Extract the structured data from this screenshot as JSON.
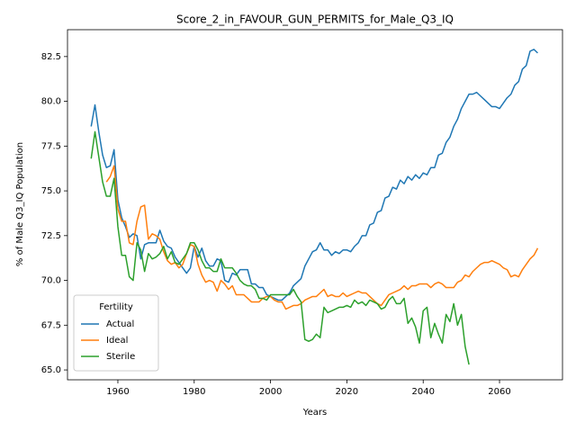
{
  "chart_data": {
    "type": "line",
    "title": "Score_2_in_FAVOUR_GUN_PERMITS_for_Male_Q3_IQ",
    "x_label": "Years",
    "y_label": "% of Male Q3_IQ Population",
    "legend_title": "Fertility",
    "legend": "lower left",
    "x": [
      1953,
      1954,
      1955,
      1956,
      1957,
      1958,
      1959,
      1960,
      1961,
      1962,
      1963,
      1964,
      1965,
      1966,
      1967,
      1968,
      1969,
      1970,
      1971,
      1972,
      1973,
      1974,
      1975,
      1976,
      1977,
      1978,
      1979,
      1980,
      1981,
      1982,
      1983,
      1984,
      1985,
      1986,
      1987,
      1988,
      1989,
      1990,
      1991,
      1992,
      1993,
      1994,
      1995,
      1996,
      1997,
      1998,
      1999,
      2000,
      2001,
      2002,
      2003,
      2004,
      2005,
      2006,
      2007,
      2008,
      2009,
      2010,
      2011,
      2012,
      2013,
      2014,
      2015,
      2016,
      2017,
      2018,
      2019,
      2020,
      2021,
      2022,
      2023,
      2024,
      2025,
      2026,
      2027,
      2028,
      2029,
      2030,
      2031,
      2032,
      2033,
      2034,
      2035,
      2036,
      2037,
      2038,
      2039,
      2040,
      2041,
      2042,
      2043,
      2044,
      2045,
      2046,
      2047,
      2048,
      2049,
      2050,
      2051,
      2052,
      2053,
      2054,
      2055,
      2056,
      2057,
      2058,
      2059,
      2060,
      2061,
      2062,
      2063,
      2064,
      2065,
      2066,
      2067,
      2068,
      2069,
      2070
    ],
    "series": [
      {
        "name": "Actual",
        "color": "#1f77b4",
        "values": [
          78.6,
          79.8,
          78.3,
          77.0,
          76.3,
          76.4,
          77.3,
          74.5,
          73.5,
          73.0,
          72.4,
          72.6,
          72.5,
          71.2,
          72.0,
          72.1,
          72.1,
          72.1,
          72.8,
          72.2,
          71.9,
          71.8,
          71.3,
          71.0,
          70.7,
          70.4,
          70.7,
          71.9,
          71.3,
          71.8,
          71.1,
          70.8,
          70.8,
          71.2,
          71.1,
          70.0,
          69.9,
          70.4,
          70.3,
          70.6,
          70.6,
          70.6,
          69.8,
          69.8,
          69.6,
          69.6,
          69.2,
          69.1,
          69.0,
          68.9,
          68.9,
          69.1,
          69.3,
          69.7,
          69.9,
          70.1,
          70.8,
          71.2,
          71.6,
          71.7,
          72.1,
          71.7,
          71.7,
          71.4,
          71.6,
          71.5,
          71.7,
          71.7,
          71.6,
          71.9,
          72.1,
          72.5,
          72.5,
          73.1,
          73.2,
          73.8,
          73.9,
          74.6,
          74.7,
          75.2,
          75.1,
          75.6,
          75.4,
          75.8,
          75.6,
          75.9,
          75.7,
          76.0,
          75.9,
          76.3,
          76.3,
          77.0,
          77.1,
          77.7,
          78.0,
          78.6,
          79.0,
          79.6,
          80.0,
          80.4,
          80.4,
          80.5,
          80.3,
          80.1,
          79.9,
          79.7,
          79.7,
          79.6,
          79.9,
          80.2,
          80.4,
          80.9,
          81.1,
          81.8,
          82.0,
          82.8,
          82.9,
          82.7
        ]
      },
      {
        "name": "Ideal",
        "color": "#ff7f0e",
        "values": [
          null,
          null,
          null,
          null,
          75.5,
          75.8,
          76.4,
          74.0,
          73.3,
          73.3,
          72.1,
          72.0,
          73.3,
          74.1,
          74.2,
          72.3,
          72.6,
          72.5,
          72.3,
          71.6,
          71.1,
          70.9,
          71.0,
          70.7,
          70.9,
          71.5,
          72.0,
          71.9,
          70.9,
          70.3,
          69.9,
          70.0,
          69.9,
          69.4,
          70.0,
          69.8,
          69.5,
          69.7,
          69.2,
          69.2,
          69.2,
          69.0,
          68.8,
          68.8,
          68.8,
          69.0,
          69.1,
          69.1,
          68.9,
          68.8,
          68.8,
          68.4,
          68.5,
          68.6,
          68.6,
          68.7,
          68.9,
          69.0,
          69.1,
          69.1,
          69.3,
          69.5,
          69.1,
          69.2,
          69.1,
          69.1,
          69.3,
          69.1,
          69.2,
          69.3,
          69.4,
          69.3,
          69.3,
          69.1,
          68.9,
          68.7,
          68.6,
          68.9,
          69.2,
          69.3,
          69.4,
          69.5,
          69.7,
          69.5,
          69.7,
          69.7,
          69.8,
          69.8,
          69.8,
          69.6,
          69.8,
          69.9,
          69.8,
          69.6,
          69.6,
          69.6,
          69.9,
          70.0,
          70.3,
          70.2,
          70.5,
          70.7,
          70.9,
          71.0,
          71.0,
          71.1,
          71.0,
          70.9,
          70.7,
          70.6,
          70.2,
          70.3,
          70.2,
          70.6,
          70.9,
          71.2,
          71.4,
          71.8
        ]
      },
      {
        "name": "Sterile",
        "color": "#2ca02c",
        "values": [
          76.8,
          78.3,
          76.9,
          75.5,
          74.7,
          74.7,
          75.7,
          73.0,
          71.4,
          71.4,
          70.2,
          70.0,
          72.1,
          71.7,
          70.5,
          71.5,
          71.2,
          71.3,
          71.5,
          71.9,
          71.2,
          71.6,
          71.0,
          70.9,
          71.2,
          71.5,
          72.1,
          72.1,
          71.7,
          71.1,
          70.7,
          70.7,
          70.5,
          70.5,
          71.2,
          70.7,
          70.7,
          70.7,
          70.4,
          70.0,
          69.8,
          69.7,
          69.7,
          69.5,
          69.0,
          69.0,
          68.9,
          69.2,
          69.2,
          69.2,
          69.2,
          69.2,
          69.2,
          69.5,
          69.1,
          68.8,
          66.7,
          66.6,
          66.7,
          67.0,
          66.8,
          68.5,
          68.2,
          68.3,
          68.4,
          68.5,
          68.5,
          68.6,
          68.5,
          68.9,
          68.7,
          68.8,
          68.6,
          68.9,
          68.8,
          68.7,
          68.4,
          68.5,
          68.9,
          69.1,
          68.7,
          68.7,
          69.0,
          67.6,
          67.9,
          67.4,
          66.5,
          68.3,
          68.5,
          66.8,
          67.6,
          67.0,
          66.5,
          68.1,
          67.7,
          68.7,
          67.5,
          68.1,
          66.3,
          65.3,
          null,
          null,
          null,
          null,
          null,
          null,
          null,
          null,
          null,
          null,
          null,
          null,
          null,
          null,
          null,
          null,
          null,
          null
        ]
      }
    ],
    "xlim": [
      1946.8,
      2076.5
    ],
    "ylim": [
      64.45,
      84.0
    ],
    "xticks": [
      1960,
      1980,
      2000,
      2020,
      2040,
      2060
    ],
    "yticks": [
      {
        "value": 65,
        "label": "65.0"
      },
      67.5,
      {
        "value": 70,
        "label": "70.0"
      },
      72.5,
      {
        "value": 75,
        "label": "75.0"
      },
      77.5,
      {
        "value": 80,
        "label": "80.0"
      },
      82.5
    ]
  }
}
